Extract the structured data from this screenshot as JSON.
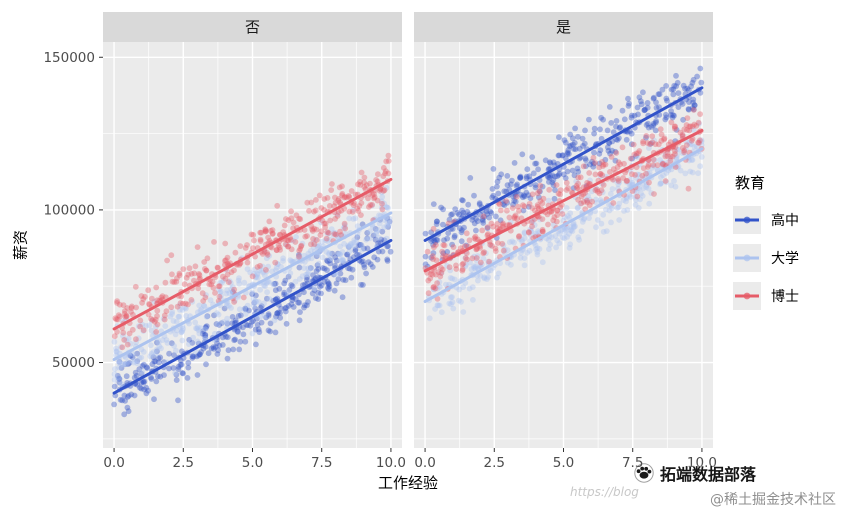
{
  "chart_data": {
    "type": "scatter",
    "title": "",
    "xlabel": "工作经验",
    "ylabel": "薪资",
    "facet_labels": [
      "否",
      "是"
    ],
    "xlim": [
      -0.4,
      10.4
    ],
    "ylim": [
      22000,
      155000
    ],
    "x_ticks": [
      0,
      2.5,
      5,
      7.5,
      10
    ],
    "x_tick_labels": [
      "0.0",
      "2.5",
      "5.0",
      "7.5",
      "10.0"
    ],
    "x_minor_ticks": [
      1.25,
      3.75,
      6.25,
      8.75
    ],
    "y_ticks": [
      50000,
      100000,
      150000
    ],
    "y_tick_labels": [
      "50000",
      "100000",
      "150000"
    ],
    "y_minor_ticks": [
      25000,
      75000,
      125000
    ],
    "grid": true,
    "legend_position": "right",
    "point_opacity": 0.4,
    "point_radius": 2.9,
    "trend_line_width": 3,
    "legend": {
      "title": "教育",
      "entries": [
        {
          "label": "高中",
          "color": "#3253C9"
        },
        {
          "label": "大学",
          "color": "#ACC3EF"
        },
        {
          "label": "博士",
          "color": "#E65C68"
        }
      ]
    },
    "facets": [
      {
        "label": "否",
        "series": [
          {
            "name": "高中",
            "color": "#3253C9",
            "trend": {
              "x": [
                0,
                10
              ],
              "y": [
                40000,
                90000
              ]
            },
            "noise_sd": 4500,
            "n": 380
          },
          {
            "name": "大学",
            "color": "#ACC3EF",
            "trend": {
              "x": [
                0,
                10
              ],
              "y": [
                51000,
                99000
              ]
            },
            "noise_sd": 4500,
            "n": 380
          },
          {
            "name": "博士",
            "color": "#E65C68",
            "trend": {
              "x": [
                0,
                10
              ],
              "y": [
                61000,
                110000
              ]
            },
            "noise_sd": 4500,
            "n": 380
          }
        ]
      },
      {
        "label": "是",
        "series": [
          {
            "name": "高中",
            "color": "#3253C9",
            "trend": {
              "x": [
                0,
                10
              ],
              "y": [
                90000,
                140000
              ]
            },
            "noise_sd": 4500,
            "n": 380
          },
          {
            "name": "大学",
            "color": "#ACC3EF",
            "trend": {
              "x": [
                0,
                10
              ],
              "y": [
                70000,
                120000
              ]
            },
            "noise_sd": 4500,
            "n": 380
          },
          {
            "name": "博士",
            "color": "#E65C68",
            "trend": {
              "x": [
                0,
                10
              ],
              "y": [
                80000,
                126000
              ]
            },
            "noise_sd": 4500,
            "n": 380
          }
        ]
      }
    ],
    "style": {
      "panel_bg": "#EBEBEB",
      "strip_bg": "#D9D9D9",
      "grid_major": "#FFFFFF",
      "grid_minor": "#FFFFFF",
      "tick_label_color": "#4D4D4D",
      "strip_text_color": "#1A1A1A",
      "axis_title_color": "#000000",
      "tick_mark_color": "#333333"
    }
  },
  "watermark": {
    "brand": "拓端数据部落",
    "url_text": "https://blog",
    "community": "@稀土掘金技术社区"
  }
}
